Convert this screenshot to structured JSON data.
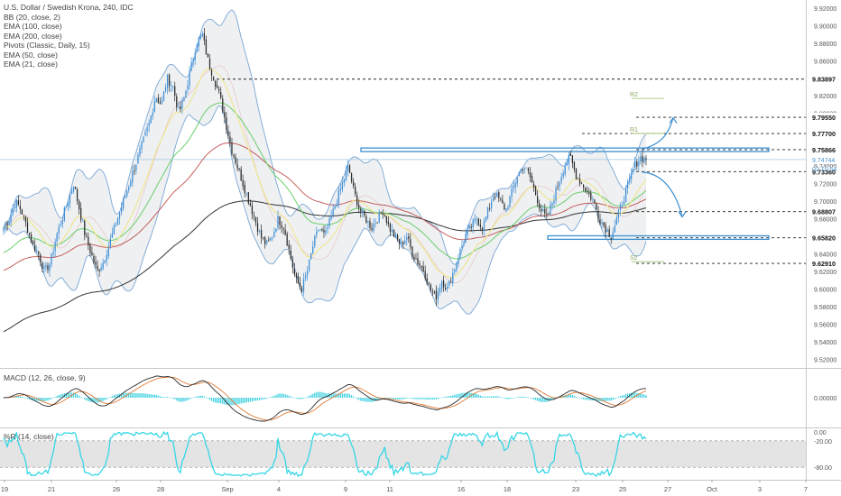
{
  "header": {
    "title": "U.S. Dollar / Swedish Krona, 240, IDC",
    "indicators": [
      "BB (20, close, 2)",
      "EMA (100, close)",
      "EMA (200, close)",
      "Pivots (Classic, Daily, 15)",
      "EMA (50, close)",
      "EMA (21, close)"
    ]
  },
  "colors": {
    "up": "#3d8ed6",
    "down": "#2b2b2b",
    "bb": "#7aa7d6",
    "ema100": "#c0504d",
    "ema200": "#333333",
    "ema50": "#6ccf6c",
    "ema21": "#f0e68c",
    "macd": "#2b2b2b",
    "signal": "#e07a36",
    "hist": "#3fd0e0",
    "wr": "#35d6e6",
    "zone": "#3b8fd0"
  },
  "chart_data": [
    {
      "type": "candlestick",
      "ylim": [
        9.51,
        9.925
      ],
      "y_ticks": [
        "9.92000",
        "9.90000",
        "9.88000",
        "9.86000",
        "9.84000",
        "9.82000",
        "9.80000",
        "9.78000",
        "9.76000",
        "9.74000",
        "9.72000",
        "9.70000",
        "9.68000",
        "9.66000",
        "9.64000",
        "9.62000",
        "9.60000",
        "9.58000",
        "9.56000",
        "9.54000",
        "9.52000"
      ],
      "x_ticks": [
        "19",
        "21",
        "26",
        "28",
        "Sep",
        "4",
        "9",
        "11",
        "16",
        "18",
        "23",
        "25",
        "27",
        "Oct",
        "3",
        "7"
      ],
      "close_path": [
        9.67,
        9.68,
        9.7,
        9.69,
        9.67,
        9.65,
        9.64,
        9.62,
        9.63,
        9.66,
        9.68,
        9.7,
        9.72,
        9.69,
        9.66,
        9.64,
        9.62,
        9.63,
        9.65,
        9.67,
        9.69,
        9.71,
        9.73,
        9.75,
        9.77,
        9.79,
        9.82,
        9.81,
        9.84,
        9.83,
        9.8,
        9.82,
        9.85,
        9.88,
        9.89,
        9.86,
        9.84,
        9.82,
        9.79,
        9.76,
        9.74,
        9.72,
        9.7,
        9.68,
        9.66,
        9.65,
        9.66,
        9.68,
        9.67,
        9.64,
        9.61,
        9.6,
        9.62,
        9.65,
        9.67,
        9.66,
        9.68,
        9.7,
        9.72,
        9.74,
        9.71,
        9.69,
        9.68,
        9.67,
        9.68,
        9.69,
        9.67,
        9.66,
        9.65,
        9.66,
        9.64,
        9.63,
        9.62,
        9.6,
        9.59,
        9.61,
        9.6,
        9.62,
        9.64,
        9.66,
        9.67,
        9.68,
        9.67,
        9.69,
        9.71,
        9.7,
        9.69,
        9.71,
        9.73,
        9.74,
        9.73,
        9.71,
        9.69,
        9.68,
        9.7,
        9.72,
        9.74,
        9.75,
        9.73,
        9.72,
        9.71,
        9.7,
        9.68,
        9.67,
        9.66,
        9.68,
        9.7,
        9.72,
        9.74,
        9.75,
        9.747
      ],
      "horizontal_levels": [
        {
          "label": "9.83897",
          "value": 9.83897,
          "style": "dashed"
        },
        {
          "label": "9.79550",
          "value": 9.7955,
          "style": "dashed"
        },
        {
          "label": "9.77700",
          "value": 9.777,
          "style": "dashed"
        },
        {
          "label": "9.75866",
          "value": 9.75866,
          "style": "dashed"
        },
        {
          "label": "9.73360",
          "value": 9.7336,
          "style": "dashed"
        },
        {
          "label": "9.68807",
          "value": 9.68807,
          "style": "dashed"
        },
        {
          "label": "9.65820",
          "value": 9.6582,
          "style": "dashed"
        },
        {
          "label": "9.62910",
          "value": 9.6291,
          "style": "dashed"
        }
      ],
      "current_price": {
        "label": "9.74744",
        "value": 9.74744,
        "countdown": "02:10:54"
      },
      "pivot_labels": [
        {
          "label": "R2",
          "value": 9.817
        },
        {
          "label": "R1",
          "value": 9.777
        },
        {
          "label": "S2",
          "value": 9.631
        }
      ],
      "zones": [
        {
          "from": 9.7565,
          "to": 9.7605
        },
        {
          "from": 9.6565,
          "to": 9.6605
        }
      ]
    },
    {
      "type": "line",
      "title": "MACD (12, 26, close, 9)",
      "y_ticks": [
        "0.00000"
      ]
    },
    {
      "type": "line",
      "title": "%R (14, close)",
      "ylim": [
        -100,
        0
      ],
      "y_ticks": [
        "0.00",
        "-20.00",
        "-80.00"
      ],
      "band": [
        -80,
        -20
      ]
    }
  ]
}
